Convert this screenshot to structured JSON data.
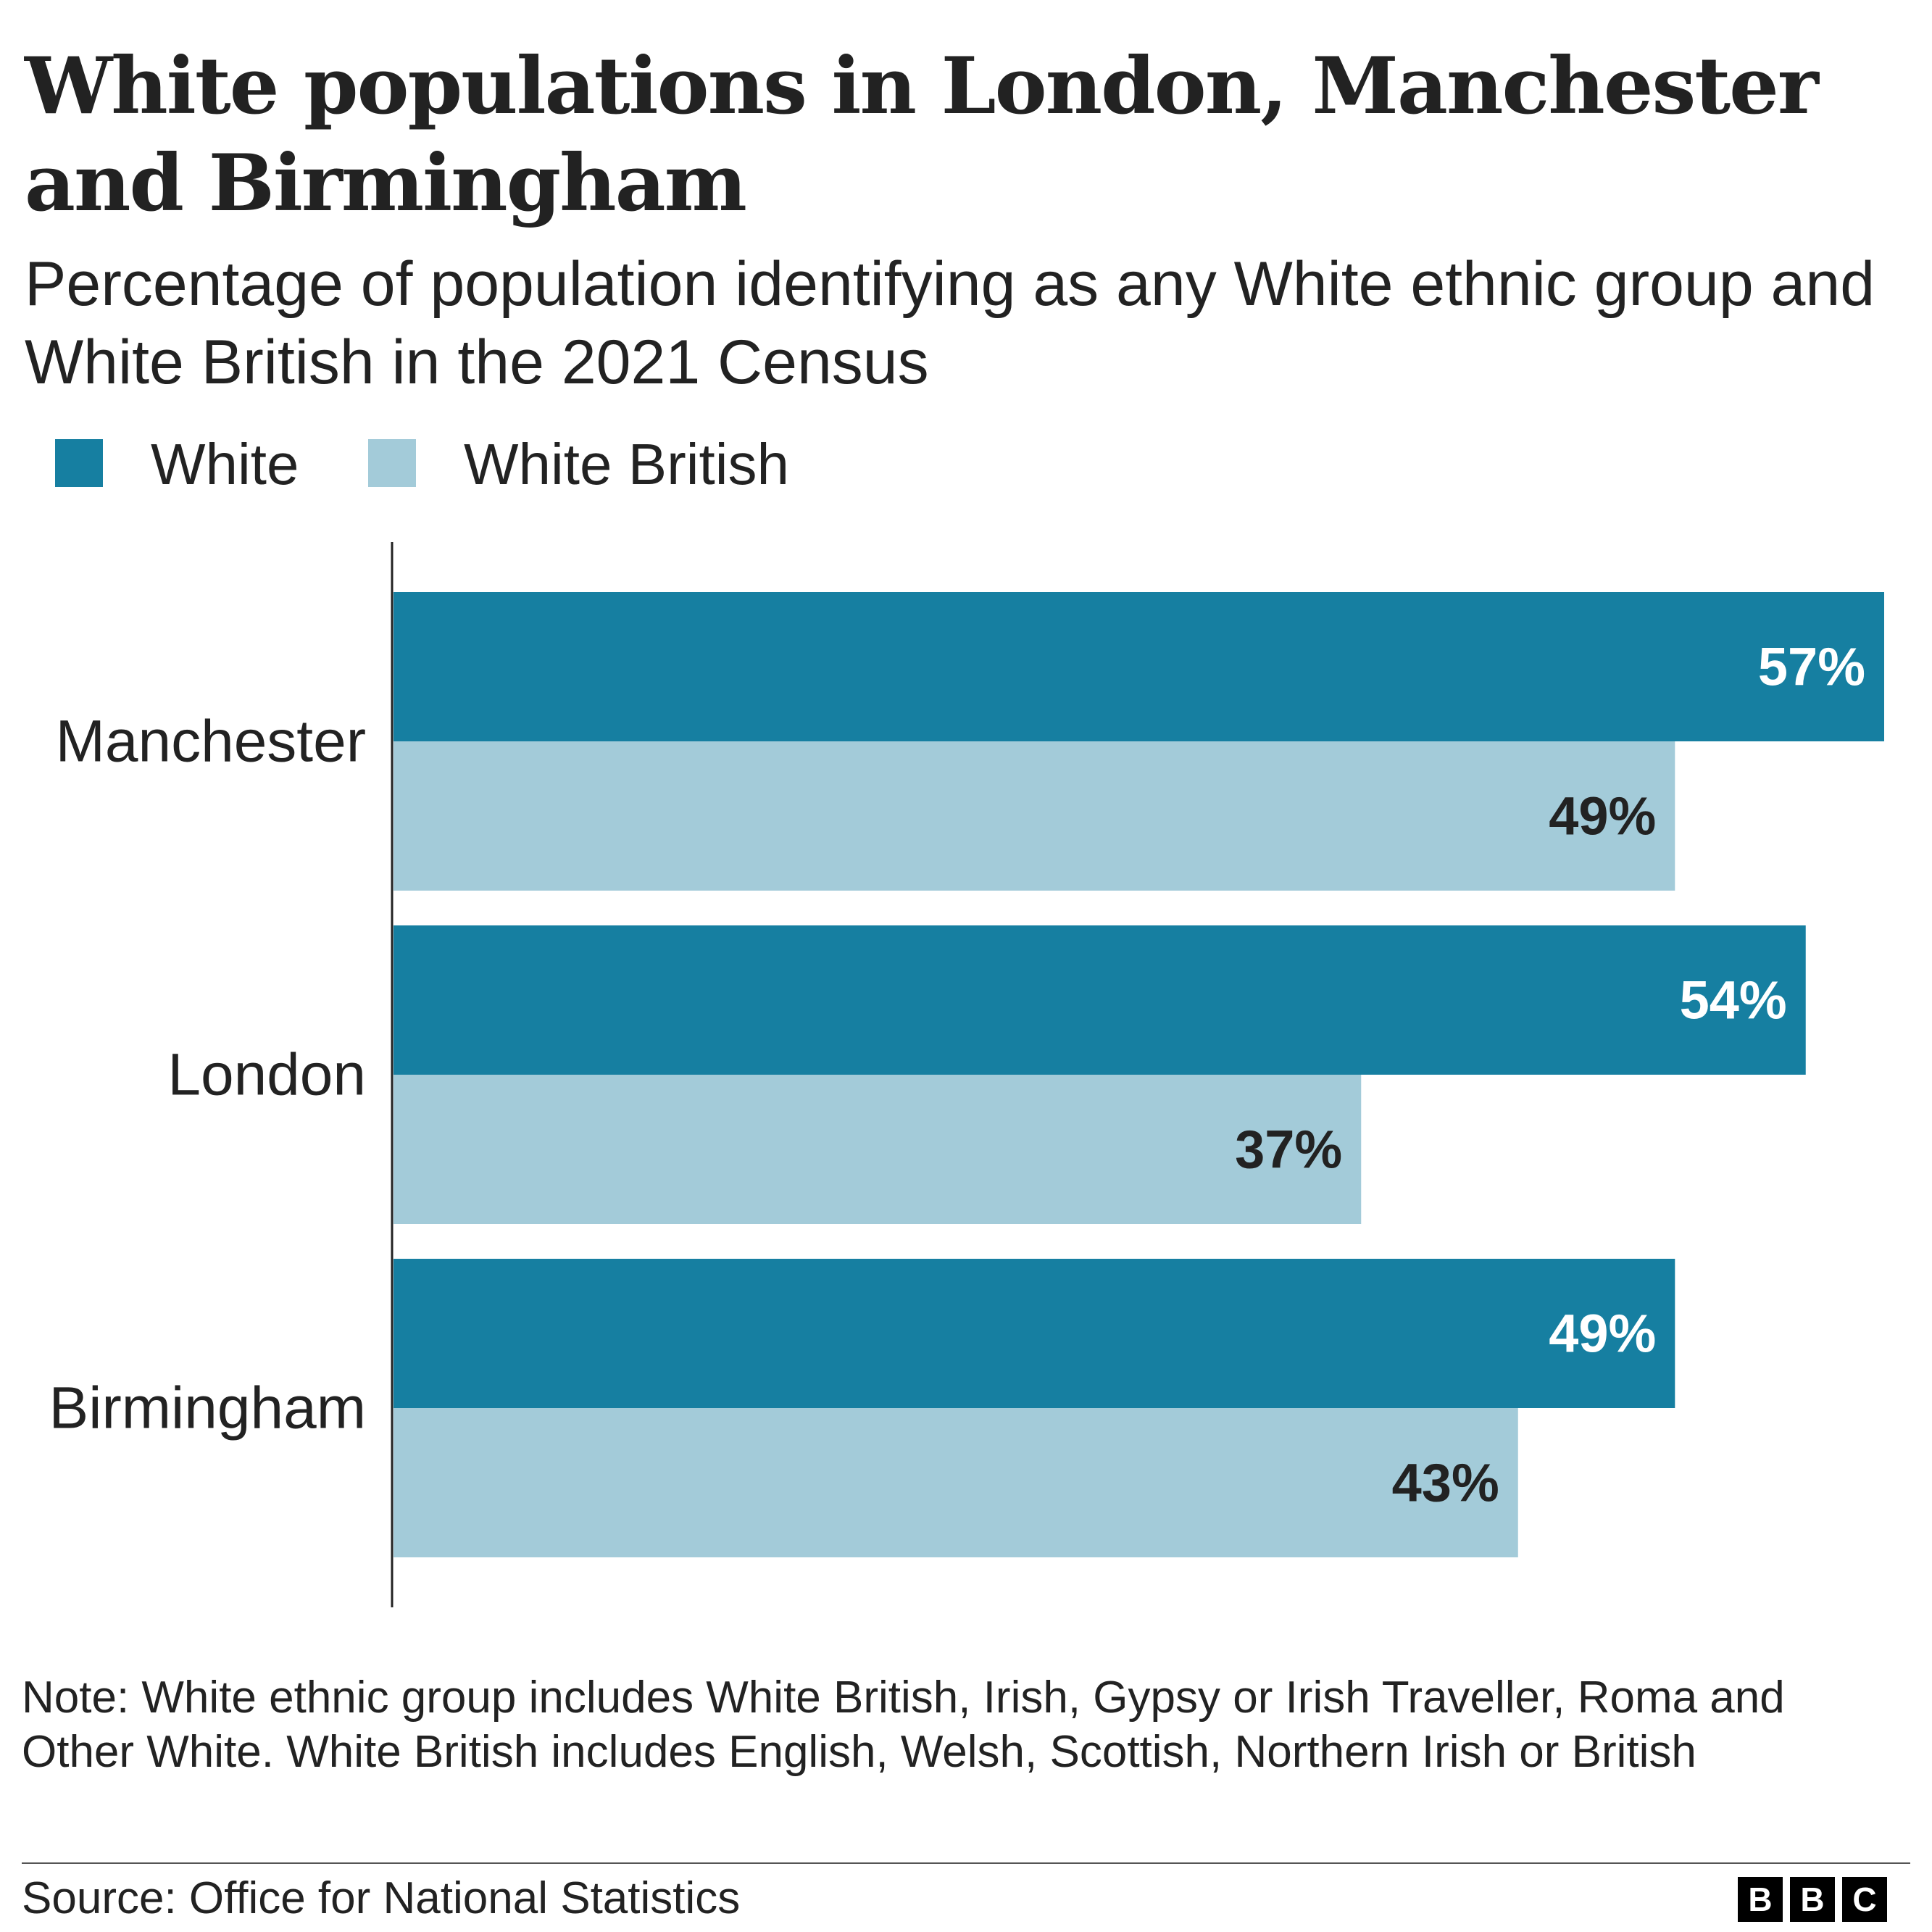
{
  "title": "White populations in London, Manchester and Birmingham",
  "subtitle": "Percentage of population identifying as any White ethnic group and White British in the 2021 Census",
  "legend": [
    {
      "label": "White",
      "color": "#167fa1"
    },
    {
      "label": "White British",
      "color": "#a3cbd9"
    }
  ],
  "chart_data": {
    "type": "bar",
    "orientation": "horizontal",
    "categories": [
      "Manchester",
      "London",
      "Birmingham"
    ],
    "series": [
      {
        "name": "White",
        "values": [
          57,
          54,
          49
        ],
        "labels": [
          "57%",
          "54%",
          "49%"
        ],
        "color": "#167fa1",
        "label_color": "#ffffff"
      },
      {
        "name": "White British",
        "values": [
          49,
          37,
          43
        ],
        "labels": [
          "49%",
          "37%",
          "43%"
        ],
        "color": "#a3cbd9",
        "label_color": "#222222"
      }
    ],
    "xlim": [
      0,
      57
    ],
    "grid": false,
    "legend_position": "top-left"
  },
  "note": "Note: White ethnic group includes White British, Irish, Gypsy or Irish Traveller, Roma and Other White. White British includes English, Welsh, Scottish, Northern Irish or British",
  "source": "Source: Office for National Statistics",
  "logo": [
    "B",
    "B",
    "C"
  ]
}
